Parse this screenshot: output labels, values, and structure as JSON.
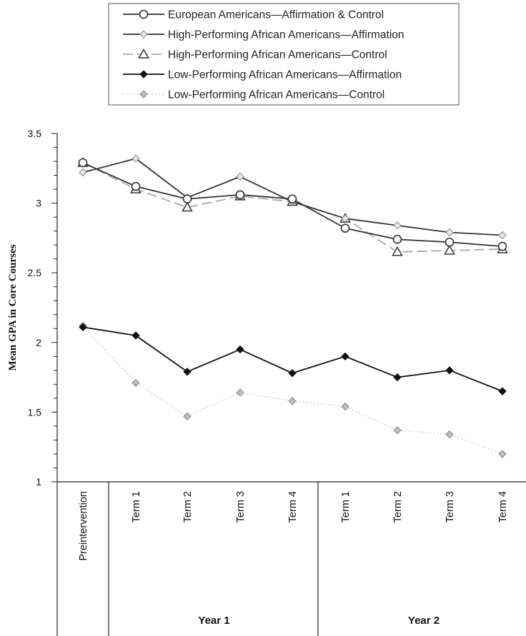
{
  "chart_data": {
    "type": "line",
    "ylabel": "Mean GPA in Core Courses",
    "ylim": [
      1,
      3.5
    ],
    "yticks": [
      "1",
      "1.5",
      "2",
      "2.5",
      "3",
      "3.5"
    ],
    "categories": [
      "Preintervention",
      "Term 1",
      "Term 2",
      "Term 3",
      "Term 4",
      "Term 1",
      "Term 2",
      "Term 3",
      "Term 4"
    ],
    "groups": [
      {
        "label": "Year 1",
        "from": 1,
        "to": 4
      },
      {
        "label": "Year 2",
        "from": 5,
        "to": 8
      }
    ],
    "grid": false,
    "legend_position": "top",
    "series": [
      {
        "name": "European Americans—Affirmation & Control",
        "marker": "circle",
        "color": "#333333",
        "fill": "#ffffff",
        "dash": "solid",
        "values": [
          3.29,
          3.12,
          3.03,
          3.06,
          3.03,
          2.82,
          2.74,
          2.72,
          2.69
        ]
      },
      {
        "name": "High-Performing African Americans—Affirmation",
        "marker": "diamond",
        "color": "#333333",
        "fill": "#e6e6e6",
        "dash": "solid",
        "values": [
          3.22,
          3.32,
          3.04,
          3.19,
          3.01,
          2.89,
          2.84,
          2.79,
          2.77
        ]
      },
      {
        "name": "High-Performing African Americans—Control",
        "marker": "triangle",
        "color": "#a9a9a9",
        "fill": "#ffffff",
        "dash": "dashed",
        "values": [
          3.29,
          3.1,
          2.97,
          3.05,
          3.01,
          2.89,
          2.65,
          2.66,
          2.67
        ]
      },
      {
        "name": "Low-Performing African Americans—Affirmation",
        "marker": "diamond",
        "color": "#111111",
        "fill": "#111111",
        "dash": "solid",
        "values": [
          2.11,
          2.05,
          1.79,
          1.95,
          1.78,
          1.9,
          1.75,
          1.8,
          1.65
        ]
      },
      {
        "name": "Low-Performing African Americans—Control",
        "marker": "diamond",
        "color": "#c4c4c4",
        "fill": "#bdbdbd",
        "dash": "dotted",
        "values": [
          2.12,
          1.71,
          1.47,
          1.64,
          1.58,
          1.54,
          1.37,
          1.34,
          1.2
        ]
      }
    ]
  }
}
